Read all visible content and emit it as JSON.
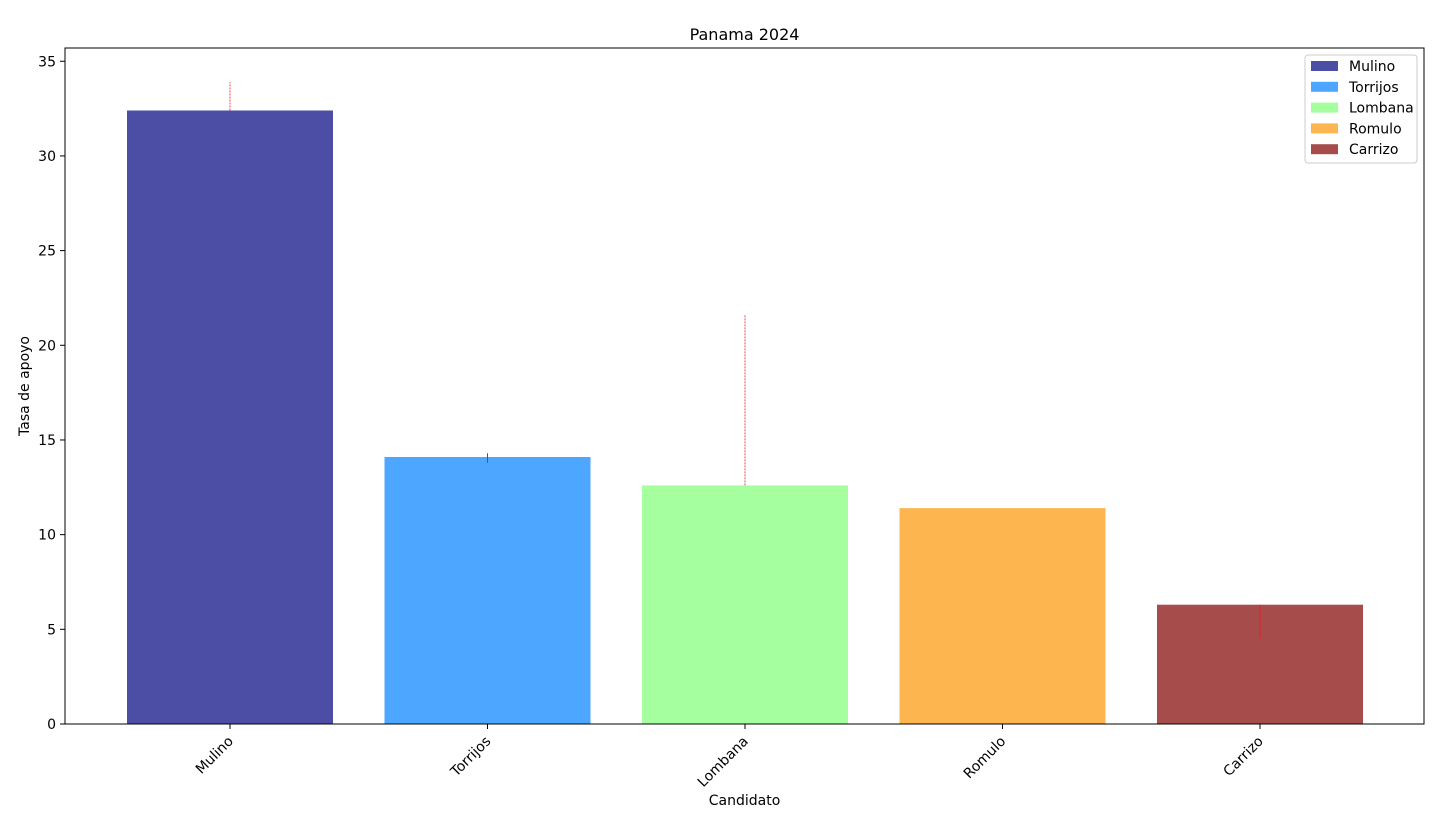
{
  "chart_data": {
    "type": "bar",
    "title": "Panama 2024",
    "xlabel": "Candidato",
    "ylabel": "Tasa de apoyo",
    "categories": [
      "Mulino",
      "Torrijos",
      "Lombana",
      "Romulo",
      "Carrizo"
    ],
    "values": [
      32.4,
      14.1,
      12.6,
      11.4,
      6.3
    ],
    "error_bars": [
      {
        "low": 32.4,
        "high": 33.9
      },
      {
        "low": 13.8,
        "high": 14.3
      },
      {
        "low": 12.6,
        "high": 21.6
      },
      {
        "low": 11.4,
        "high": 11.4
      },
      {
        "low": 4.5,
        "high": 6.3
      }
    ],
    "colors": [
      "#4c4ea6",
      "#4da6ff",
      "#a6ff9e",
      "#fdb550",
      "#a64d4c"
    ],
    "error_colors": [
      "#e05050",
      "#555555",
      "#e05050",
      "#e05050",
      "#dd2222"
    ],
    "ylim": [
      0,
      35.7
    ],
    "yticks": [
      0,
      5,
      10,
      15,
      20,
      25,
      30,
      35
    ],
    "legend": {
      "position": "top-right",
      "entries": [
        "Mulino",
        "Torrijos",
        "Lombana",
        "Romulo",
        "Carrizo"
      ]
    },
    "grid": false
  }
}
